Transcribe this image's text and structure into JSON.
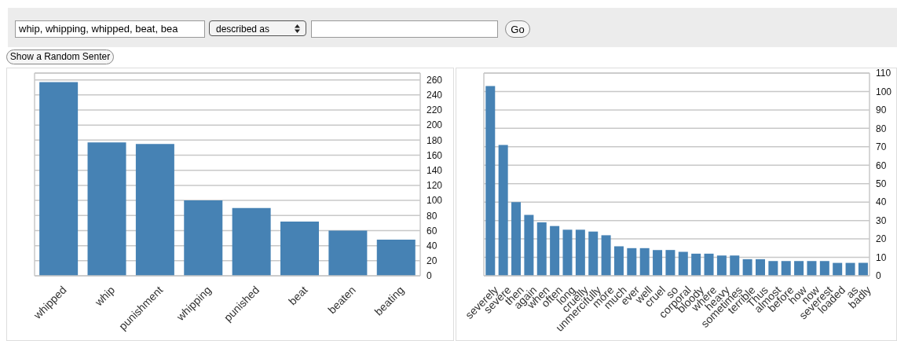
{
  "chart_data": [
    {
      "type": "other",
      "annotations": [
        "whip, whipping, whipped, beat, bea",
        "described as",
        "Go",
        "Show a Random Senter"
      ]
    },
    {
      "type": "bar",
      "categories": [
        "whipped",
        "whip",
        "punishment",
        "whipping",
        "punished",
        "beat",
        "beaten",
        "beating"
      ],
      "values": [
        257,
        177,
        175,
        100,
        90,
        72,
        60,
        48
      ],
      "color": "#4682b4",
      "ylim": [
        0,
        269
      ],
      "yticks": [
        0,
        20,
        40,
        60,
        80,
        100,
        120,
        140,
        160,
        180,
        200,
        220,
        240,
        260
      ],
      "grid": "y"
    },
    {
      "type": "bar",
      "categories": [
        "severely",
        "severe",
        "then",
        "again",
        "when",
        "often",
        "long",
        "cruelly",
        "unmercifully",
        "more",
        "much",
        "ever",
        "well",
        "cruel",
        "so",
        "corporal",
        "bloody",
        "where",
        "heavy",
        "sometimes",
        "terrible",
        "Thus",
        "almost",
        "before",
        "how",
        "now",
        "severest",
        "loaded",
        "as",
        "badly"
      ],
      "values": [
        103,
        71,
        40,
        33,
        29,
        27,
        25,
        25,
        24,
        22,
        16,
        15,
        15,
        14,
        14,
        13,
        12,
        12,
        11,
        11,
        9,
        9,
        8,
        8,
        8,
        8,
        8,
        7,
        7,
        7
      ],
      "color": "#4682b4",
      "ylim": [
        0,
        110
      ],
      "yticks": [
        0,
        10,
        20,
        30,
        40,
        50,
        60,
        70,
        80,
        90,
        100,
        110
      ],
      "grid": "y"
    }
  ]
}
